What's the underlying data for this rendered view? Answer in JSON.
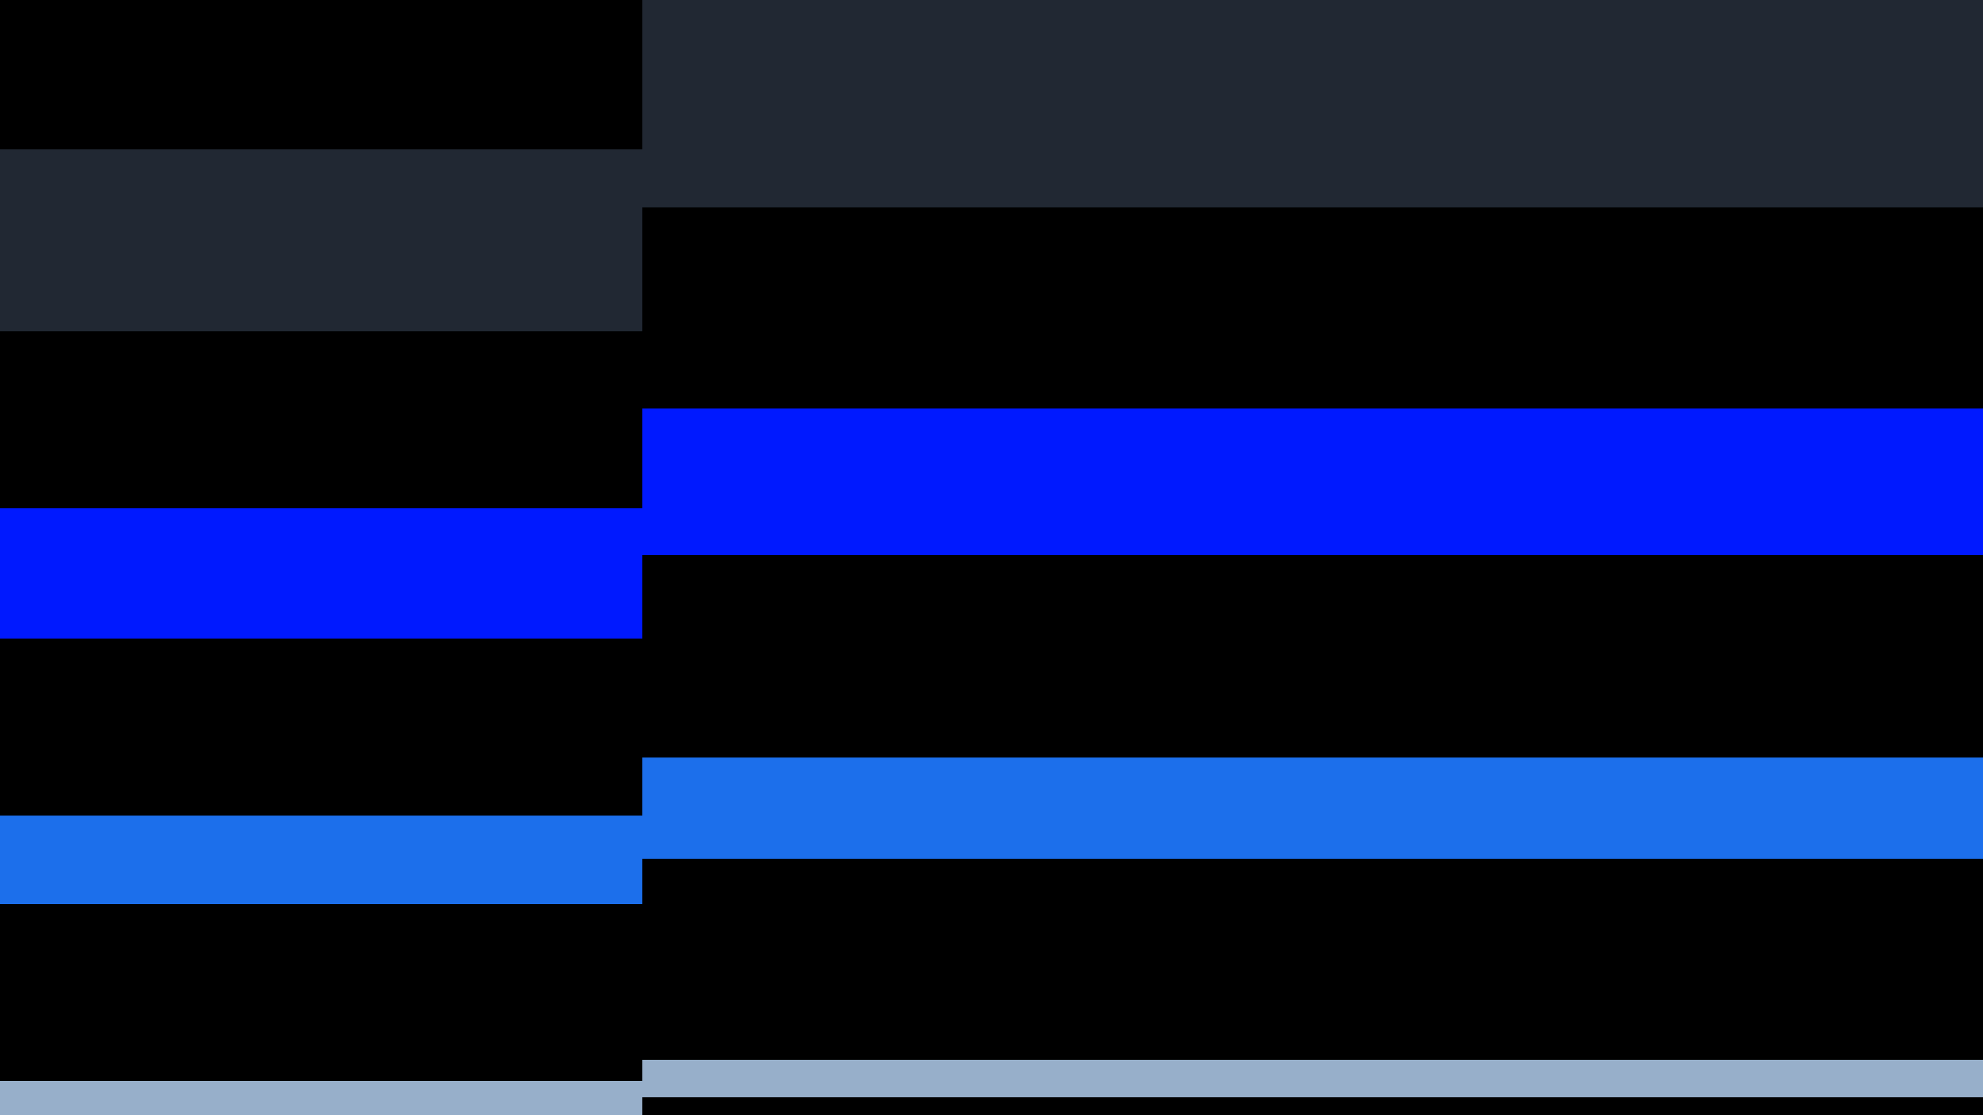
{
  "colors": {
    "background": "#000000",
    "dark_slate": "#212833",
    "blue": "#0019FF",
    "light_blue": "#1C6FEB",
    "pale_blue": "#97AFCA"
  }
}
